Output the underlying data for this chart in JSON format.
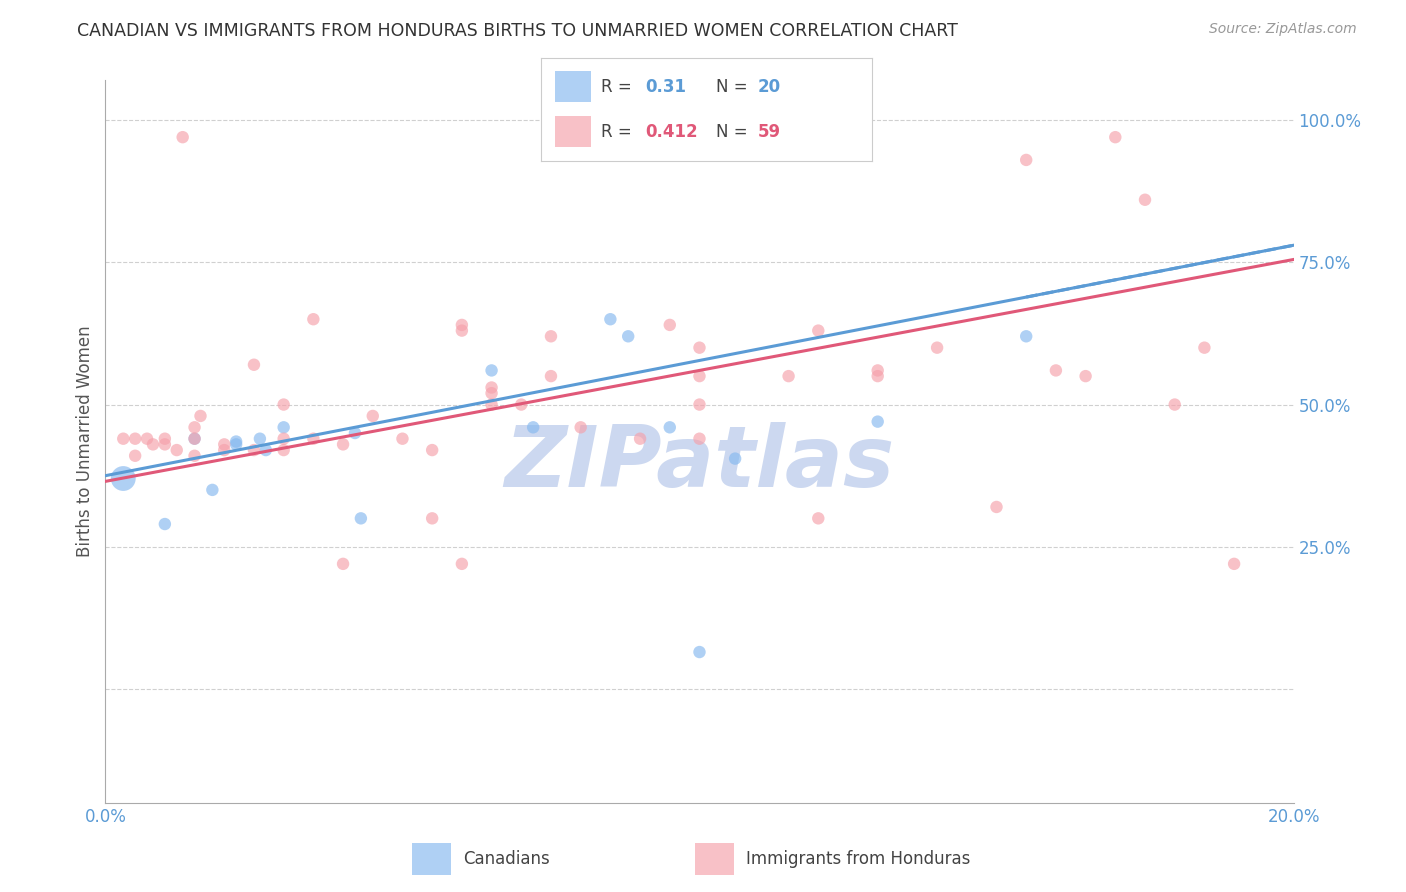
{
  "title": "CANADIAN VS IMMIGRANTS FROM HONDURAS BIRTHS TO UNMARRIED WOMEN CORRELATION CHART",
  "source": "Source: ZipAtlas.com",
  "ylabel": "Births to Unmarried Women",
  "xmin": 0.0,
  "xmax": 0.2,
  "ymin": -0.2,
  "ymax": 1.07,
  "canadian_R": 0.31,
  "canadian_N": 20,
  "honduras_R": 0.412,
  "honduras_N": 59,
  "canadian_color": "#85b8ef",
  "honduras_color": "#f5a0aa",
  "trend_canadian_color": "#5b9bd5",
  "trend_honduras_color": "#e05878",
  "watermark": "ZIPatlas",
  "watermark_color": "#ccd8f0",
  "yticks": [
    0.0,
    0.25,
    0.5,
    0.75,
    1.0
  ],
  "ytick_labels": [
    "",
    "25.0%",
    "50.0%",
    "75.0%",
    "100.0%"
  ],
  "xtick_labels": [
    "0.0%",
    "20.0%"
  ],
  "canadians_x": [
    0.003,
    0.01,
    0.015,
    0.018,
    0.022,
    0.022,
    0.026,
    0.027,
    0.03,
    0.042,
    0.043,
    0.065,
    0.072,
    0.085,
    0.088,
    0.095,
    0.1,
    0.106,
    0.13,
    0.155
  ],
  "canadians_y": [
    0.37,
    0.29,
    0.44,
    0.35,
    0.435,
    0.43,
    0.44,
    0.42,
    0.46,
    0.45,
    0.3,
    0.56,
    0.46,
    0.65,
    0.62,
    0.46,
    0.065,
    0.405,
    0.47,
    0.62
  ],
  "canadians_size": [
    320,
    80,
    80,
    80,
    80,
    80,
    80,
    80,
    80,
    80,
    80,
    80,
    80,
    80,
    80,
    80,
    80,
    80,
    80,
    80
  ],
  "honduras_x": [
    0.003,
    0.005,
    0.005,
    0.007,
    0.008,
    0.01,
    0.01,
    0.012,
    0.013,
    0.015,
    0.015,
    0.015,
    0.016,
    0.02,
    0.02,
    0.025,
    0.025,
    0.03,
    0.03,
    0.03,
    0.035,
    0.035,
    0.04,
    0.04,
    0.045,
    0.05,
    0.055,
    0.055,
    0.06,
    0.06,
    0.06,
    0.065,
    0.065,
    0.065,
    0.07,
    0.075,
    0.075,
    0.08,
    0.09,
    0.095,
    0.1,
    0.1,
    0.1,
    0.1,
    0.115,
    0.12,
    0.12,
    0.13,
    0.13,
    0.14,
    0.15,
    0.155,
    0.16,
    0.165,
    0.17,
    0.175,
    0.18,
    0.185,
    0.19
  ],
  "honduras_y": [
    0.44,
    0.44,
    0.41,
    0.44,
    0.43,
    0.44,
    0.43,
    0.42,
    0.97,
    0.41,
    0.44,
    0.46,
    0.48,
    0.42,
    0.43,
    0.42,
    0.57,
    0.42,
    0.44,
    0.5,
    0.65,
    0.44,
    0.22,
    0.43,
    0.48,
    0.44,
    0.42,
    0.3,
    0.22,
    0.63,
    0.64,
    0.52,
    0.53,
    0.5,
    0.5,
    0.55,
    0.62,
    0.46,
    0.44,
    0.64,
    0.5,
    0.55,
    0.6,
    0.44,
    0.55,
    0.63,
    0.3,
    0.55,
    0.56,
    0.6,
    0.32,
    0.93,
    0.56,
    0.55,
    0.97,
    0.86,
    0.5,
    0.6,
    0.22
  ],
  "honduras_size": [
    80,
    80,
    80,
    80,
    80,
    80,
    80,
    80,
    80,
    80,
    80,
    80,
    80,
    80,
    80,
    80,
    80,
    80,
    80,
    80,
    80,
    80,
    80,
    80,
    80,
    80,
    80,
    80,
    80,
    80,
    80,
    80,
    80,
    80,
    80,
    80,
    80,
    80,
    80,
    80,
    80,
    80,
    80,
    80,
    80,
    80,
    80,
    80,
    80,
    80,
    80,
    80,
    80,
    80,
    80,
    80,
    80,
    80,
    80
  ],
  "trend_c_x0": 0.0,
  "trend_c_y0": 0.375,
  "trend_c_x1": 0.2,
  "trend_c_y1": 0.78,
  "trend_h_x0": 0.0,
  "trend_h_y0": 0.365,
  "trend_h_x1": 0.2,
  "trend_h_y1": 0.755
}
